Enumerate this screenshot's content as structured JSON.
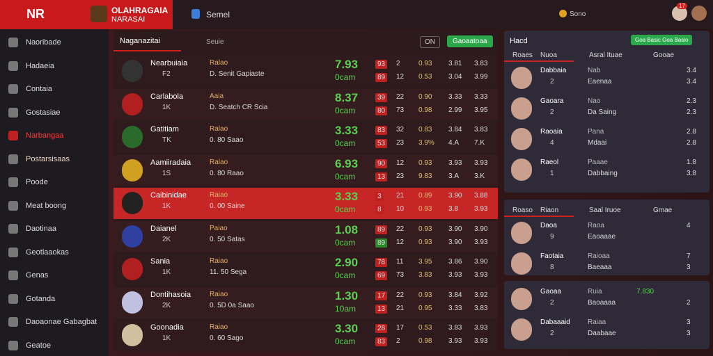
{
  "header": {
    "logo": "NR",
    "title": "OLAHRAGAIA",
    "subtitle": "NARASAI",
    "tab": "Semel",
    "status": "Sono",
    "badge": "17"
  },
  "sidebar": [
    "Naoribade",
    "Hadaeia",
    "Contaia",
    "Gostasiae",
    "Narbangaa",
    "Postarsisaas",
    "Poode",
    "Meat boong",
    "Daotinaa",
    "Geotlaaokas",
    "Genas",
    "Gotanda",
    "Daoaonae Gabagbat",
    "Geatoe"
  ],
  "main": {
    "tab": "Naganazitai",
    "tab2": "Seuie",
    "toggle": "ON",
    "button": "Gaoaatoaa",
    "rows": [
      {
        "name": "Nearbuiaia",
        "tag": "F2",
        "league": "Ralao",
        "match": "D. Senit Gapiaste",
        "odds": "7.93",
        "unit": "0cam",
        "top": [
          "93",
          "2",
          "0.93",
          "3.81",
          "3.83"
        ],
        "bottom": [
          "89",
          "12",
          "0.53",
          "3.04",
          "3.99"
        ]
      },
      {
        "name": "Carlabola",
        "tag": "1K",
        "league": "Aaia",
        "match": "D. Seatch CR Scia",
        "odds": "8.37",
        "unit": "0cam",
        "top": [
          "39",
          "22",
          "0.90",
          "3.33",
          "3.33"
        ],
        "bottom": [
          "80",
          "73",
          "0.98",
          "2.99",
          "3.95"
        ]
      },
      {
        "name": "Gatitiam",
        "tag": "TK",
        "league": "Ralao",
        "match": "0. 80 Saao",
        "odds": "3.33",
        "unit": "0cam",
        "top": [
          "83",
          "32",
          "0.83",
          "3.84",
          "3.83"
        ],
        "bottom": [
          "53",
          "23",
          "3.9%",
          "4.A",
          "7.K"
        ]
      },
      {
        "name": "Aamiiradaia",
        "tag": "1S",
        "league": "Ralao",
        "match": "0. 80 Raao",
        "odds": "6.93",
        "unit": "0cam",
        "top": [
          "90",
          "12",
          "0.93",
          "3.93",
          "3.93"
        ],
        "bottom": [
          "13",
          "23",
          "9.83",
          "3.A",
          "3.K"
        ]
      },
      {
        "name": "Caibinidae",
        "tag": "1K",
        "league": "Raiao",
        "match": "0. 00 Saine",
        "odds": "3.33",
        "unit": "0cam",
        "top": [
          "3",
          "21",
          "0.89",
          "3.90",
          "3.88"
        ],
        "bottom": [
          "8",
          "10",
          "0.93",
          "3.8",
          "3.93"
        ]
      },
      {
        "name": "Daianel",
        "tag": "2K",
        "league": "Paiao",
        "match": "0. 50 Satas",
        "odds": "1.08",
        "unit": "0cam",
        "top": [
          "89",
          "22",
          "0.93",
          "3.90",
          "3.90"
        ],
        "bottom": [
          "89",
          "12",
          "0.93",
          "3.90",
          "3.93"
        ]
      },
      {
        "name": "Sania",
        "tag": "1K",
        "league": "Raiao",
        "match": "11. 50 Sega",
        "odds": "2.90",
        "unit": "0cam",
        "top": [
          "78",
          "11",
          "3.95",
          "3.86",
          "3.90"
        ],
        "bottom": [
          "69",
          "73",
          "3.83",
          "3.93",
          "3.93"
        ]
      },
      {
        "name": "Dontihasoia",
        "tag": "2K",
        "league": "Raiao",
        "match": "0. 5D 0a Saao",
        "odds": "1.30",
        "unit": "10am",
        "top": [
          "17",
          "22",
          "0.93",
          "3.84",
          "3.92"
        ],
        "bottom": [
          "13",
          "21",
          "0.95",
          "3.33",
          "3.83"
        ]
      },
      {
        "name": "Goonadia",
        "tag": "1K",
        "league": "Raiao",
        "match": "0. 60 Sago",
        "odds": "3.30",
        "unit": "0cam",
        "top": [
          "28",
          "17",
          "0.53",
          "3.83",
          "3.93"
        ],
        "bottom": [
          "83",
          "2",
          "0.98",
          "3.93",
          "3.93"
        ]
      }
    ]
  },
  "panels": [
    {
      "title": "Hacd",
      "button": "Goa Basic Goa Basio",
      "headers": [
        "Roaes",
        "Nuoa",
        "Asral Ituae",
        "Gooae"
      ],
      "rows": [
        {
          "name": "Dabbaia",
          "tag": "2",
          "team": "Eaenaa",
          "team2": "Nab",
          "a": "3.4",
          "b": "3.4"
        },
        {
          "name": "Gaoara",
          "tag": "2",
          "team": "Da Saing",
          "team2": "Nao",
          "a": "2.3",
          "b": "2.3"
        },
        {
          "name": "Raoaia",
          "tag": "4",
          "team": "Mdaai",
          "team2": "Pana",
          "a": "2.8",
          "b": "2.8"
        },
        {
          "name": "Raeol",
          "tag": "1",
          "team": "Dabbaing",
          "team2": "Paaae",
          "a": "1.8",
          "b": "3.8"
        }
      ]
    },
    {
      "headers": [
        "Roaso",
        "Riaon",
        "Saal Iruoe",
        "Gmae"
      ],
      "rows": [
        {
          "name": "Daoa",
          "tag": "9",
          "team": "Eaoaaae",
          "team2": "Raoa",
          "a": "4",
          "b": ""
        },
        {
          "name": "Faotaia",
          "tag": "8",
          "team": "Baeaaa",
          "team2": "Raioaa",
          "a": "7",
          "b": "3"
        }
      ]
    },
    {
      "rows": [
        {
          "name": "Gaoaa",
          "tag": "2",
          "team": "Baoaaaa",
          "team2": "Ruia",
          "a": "7.830",
          "b": "2"
        },
        {
          "name": "Dabaaaid",
          "tag": "2",
          "team": "Daabaae",
          "team2": "Raiaa",
          "a": "3",
          "b": "3"
        }
      ]
    }
  ]
}
